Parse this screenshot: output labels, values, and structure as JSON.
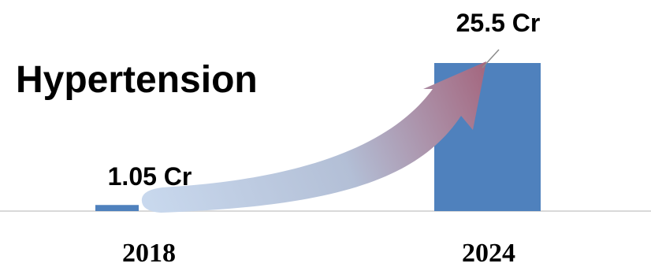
{
  "chart_data": {
    "type": "bar",
    "title": "Hypertension",
    "categories": [
      "2018",
      "2024"
    ],
    "values": [
      1.05,
      25.5
    ],
    "data_labels": [
      "1.05 Cr",
      "25.5 Cr"
    ],
    "unit": "Cr",
    "ylim": [
      0,
      25.5
    ],
    "grid": false,
    "legend": "none",
    "colors": {
      "bar": "#4f81bd",
      "axis": "#d9d9d9",
      "arrow_start": "#c9d9ee",
      "arrow_end": "#a4677f",
      "text": "#000000"
    }
  }
}
